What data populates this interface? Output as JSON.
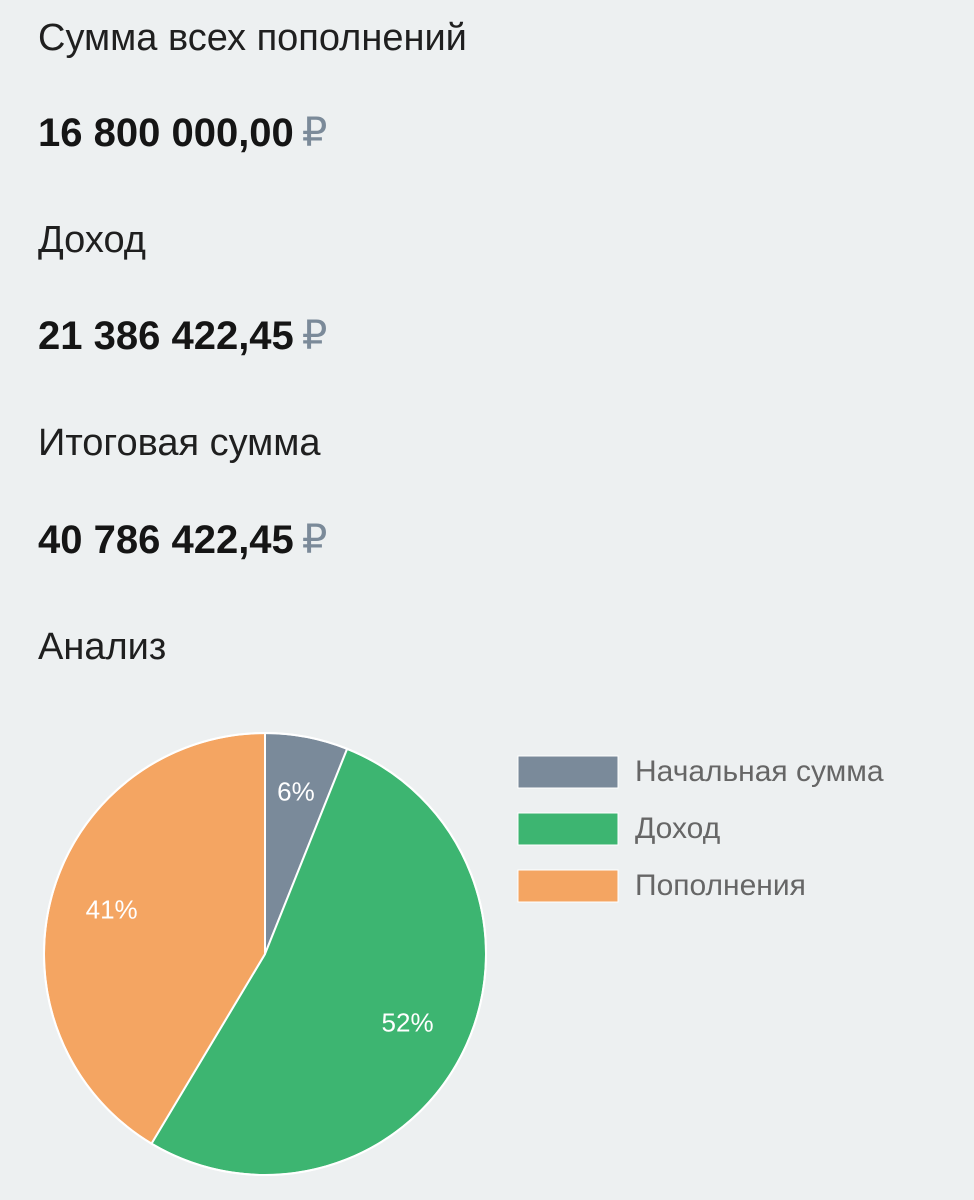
{
  "summary": {
    "deposits_label": "Сумма всех пополнений",
    "deposits_value": "16 800 000,00",
    "income_label": "Доход",
    "income_value": "21 386 422,45",
    "total_label": "Итоговая сумма",
    "total_value": "40 786 422,45",
    "currency": "₽"
  },
  "analysis": {
    "title": "Анализ"
  },
  "chart_data": {
    "type": "pie",
    "title": "",
    "categories": [
      "Начальная сумма",
      "Доход",
      "Пополнения"
    ],
    "values": [
      6,
      52,
      41
    ],
    "data_labels": [
      "6%",
      "52%",
      "41%"
    ],
    "colors": [
      "#7a8a9a",
      "#3db571",
      "#f4a562"
    ],
    "legend_placement": "right"
  }
}
